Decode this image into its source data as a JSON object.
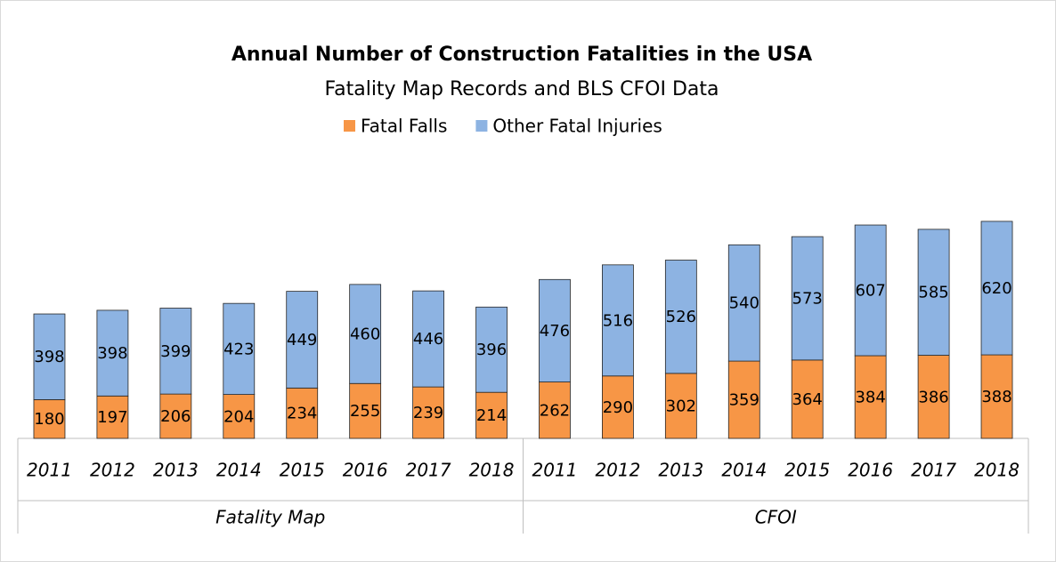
{
  "chart_data": {
    "type": "stacked-bar",
    "title": "Annual Number of Construction Fatalities in the USA",
    "subtitle": "Fatality Map Records and BLS CFOI Data",
    "groups": [
      {
        "name": "Fatality Map",
        "categories": [
          "2011",
          "2012",
          "2013",
          "2014",
          "2015",
          "2016",
          "2017",
          "2018"
        ]
      },
      {
        "name": "CFOI",
        "categories": [
          "2011",
          "2012",
          "2013",
          "2014",
          "2015",
          "2016",
          "2017",
          "2018"
        ]
      }
    ],
    "series": [
      {
        "name": "Fatal Falls",
        "color": "#f79646",
        "values": [
          180,
          197,
          206,
          204,
          234,
          255,
          239,
          214,
          262,
          290,
          302,
          359,
          364,
          384,
          386,
          388
        ]
      },
      {
        "name": "Other Fatal Injuries",
        "color": "#8db3e2",
        "values": [
          398,
          398,
          399,
          423,
          449,
          460,
          446,
          396,
          476,
          516,
          526,
          540,
          573,
          607,
          585,
          620
        ]
      }
    ],
    "ylim": [
      0,
      1400
    ],
    "legend": "top"
  }
}
